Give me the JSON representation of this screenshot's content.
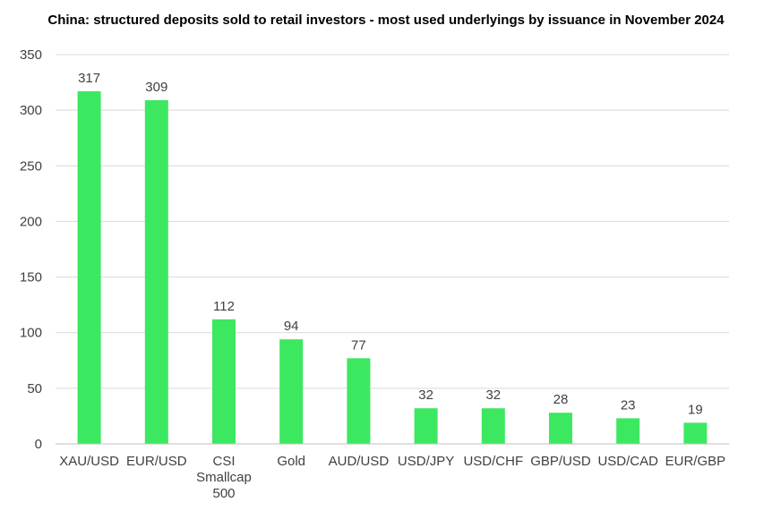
{
  "chart_data": {
    "type": "bar",
    "title": "China: structured deposits sold to retail investors - most used underlyings by issuance in November 2024",
    "categories": [
      "XAU/USD",
      "EUR/USD",
      "CSI Smallcap 500",
      "Gold",
      "AUD/USD",
      "USD/JPY",
      "USD/CHF",
      "GBP/USD",
      "USD/CAD",
      "EUR/GBP"
    ],
    "category_lines": [
      [
        "XAU/USD"
      ],
      [
        "EUR/USD"
      ],
      [
        "CSI",
        "Smallcap",
        "500"
      ],
      [
        "Gold"
      ],
      [
        "AUD/USD"
      ],
      [
        "USD/JPY"
      ],
      [
        "USD/CHF"
      ],
      [
        "GBP/USD"
      ],
      [
        "USD/CAD"
      ],
      [
        "EUR/GBP"
      ]
    ],
    "values": [
      317,
      309,
      112,
      94,
      77,
      32,
      32,
      28,
      23,
      19
    ],
    "ylim": [
      0,
      350
    ],
    "yticks": [
      0,
      50,
      100,
      150,
      200,
      250,
      300,
      350
    ],
    "xlabel": "",
    "ylabel": "",
    "bar_color": "#3ce860",
    "grid": true,
    "legend": "none"
  }
}
